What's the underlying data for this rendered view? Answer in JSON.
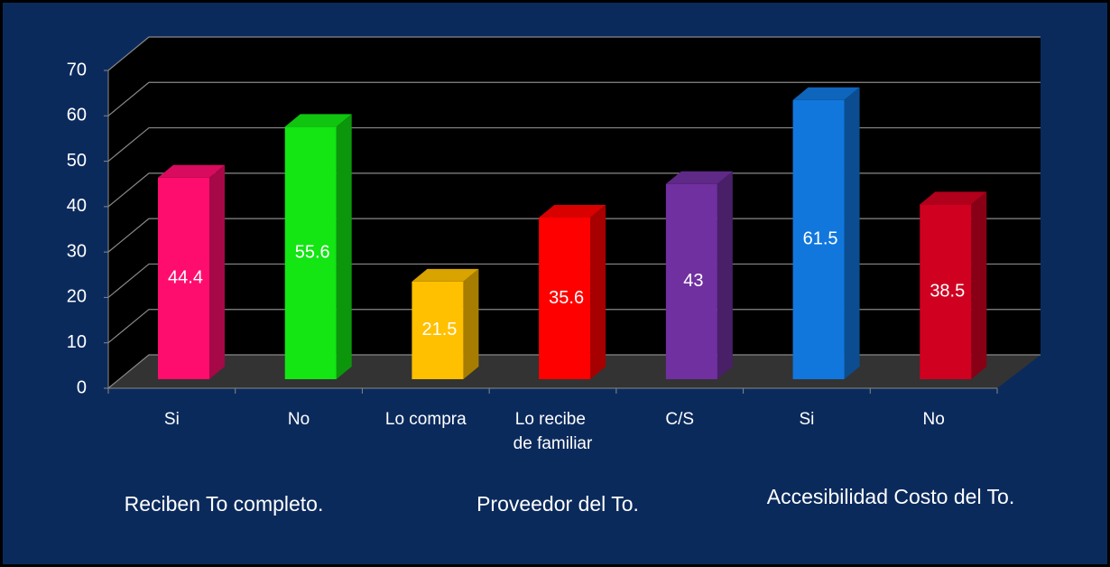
{
  "chart_data": {
    "type": "bar3d",
    "categories": [
      "Si",
      "No",
      "Lo compra",
      "Lo recibe de familiar",
      "C/S",
      "Si",
      "No"
    ],
    "values": [
      44.4,
      55.6,
      21.5,
      35.6,
      43,
      61.5,
      38.5
    ],
    "colors": [
      "#ff0d6e",
      "#13e613",
      "#ffc000",
      "#ff0000",
      "#7030a0",
      "#1177dd",
      "#d00020"
    ],
    "group_labels": [
      "Reciben To completo.",
      "Proveedor del To.",
      "Accesibilidad Costo del To."
    ],
    "ylim": [
      0,
      70
    ],
    "yticks": [
      0,
      10,
      20,
      30,
      40,
      50,
      60,
      70
    ],
    "grid": true
  }
}
